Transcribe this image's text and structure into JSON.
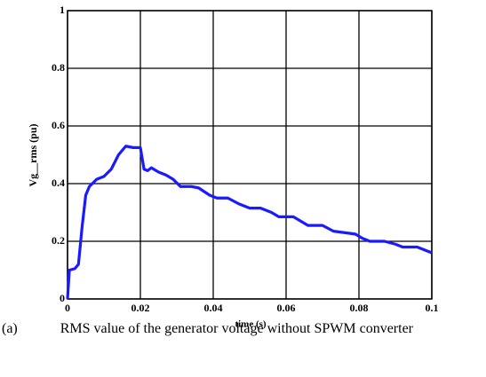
{
  "chart_data": {
    "type": "line",
    "xlabel": "time (s)",
    "ylabel": "Vg__rms (pu)",
    "caption": "(a)   RMS value of the generator voltage without SPWM converter",
    "x": [
      0,
      0.0005,
      0.002,
      0.003,
      0.004,
      0.005,
      0.006,
      0.008,
      0.01,
      0.012,
      0.014,
      0.016,
      0.018,
      0.02,
      0.021,
      0.022,
      0.023,
      0.025,
      0.027,
      0.029,
      0.031,
      0.034,
      0.036,
      0.039,
      0.041,
      0.044,
      0.047,
      0.05,
      0.053,
      0.056,
      0.058,
      0.062,
      0.064,
      0.066,
      0.07,
      0.073,
      0.076,
      0.079,
      0.081,
      0.083,
      0.087,
      0.09,
      0.092,
      0.096,
      0.1
    ],
    "values": [
      0,
      0.1,
      0.105,
      0.12,
      0.25,
      0.36,
      0.39,
      0.415,
      0.425,
      0.45,
      0.5,
      0.53,
      0.525,
      0.525,
      0.45,
      0.445,
      0.455,
      0.44,
      0.43,
      0.415,
      0.39,
      0.39,
      0.385,
      0.36,
      0.35,
      0.35,
      0.33,
      0.315,
      0.315,
      0.3,
      0.285,
      0.285,
      0.27,
      0.255,
      0.255,
      0.235,
      0.23,
      0.225,
      0.21,
      0.2,
      0.2,
      0.19,
      0.18,
      0.18,
      0.16
    ],
    "color": "#1a1aff",
    "xlim": [
      0,
      0.1
    ],
    "xticks": [
      0,
      0.02,
      0.04,
      0.06,
      0.08,
      0.1
    ],
    "ylim": [
      0,
      1
    ],
    "yticks": [
      0,
      0.2,
      0.4,
      0.6,
      0.8,
      1
    ],
    "grid": true
  }
}
